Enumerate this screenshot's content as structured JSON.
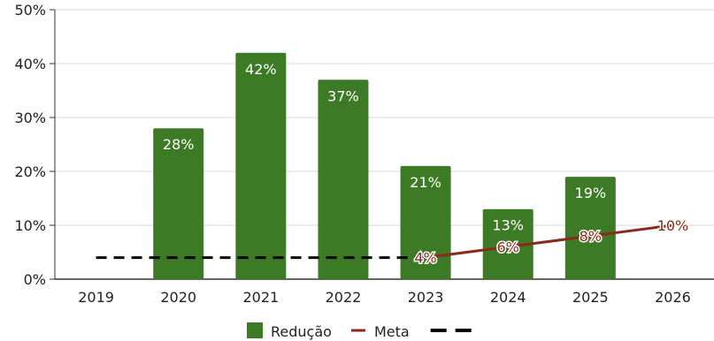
{
  "chart_data": {
    "type": "bar",
    "categories": [
      "2019",
      "2020",
      "2021",
      "2022",
      "2023",
      "2024",
      "2025",
      "2026"
    ],
    "series": [
      {
        "name": "Redução",
        "type": "bar",
        "values": [
          null,
          28,
          42,
          37,
          21,
          13,
          19,
          null
        ],
        "labels": [
          "",
          "28%",
          "42%",
          "37%",
          "21%",
          "13%",
          "19%",
          ""
        ],
        "color": "#3d7a25"
      },
      {
        "name": "Meta",
        "type": "line",
        "values": [
          null,
          null,
          null,
          null,
          4,
          6,
          8,
          10
        ],
        "labels": [
          "",
          "",
          "",
          "",
          "4%",
          "6%",
          "8%",
          "10%"
        ],
        "color": "#8b2a1a"
      },
      {
        "name": "",
        "type": "dashed-line",
        "values": [
          4,
          4,
          4,
          4,
          4,
          null,
          null,
          null
        ],
        "color": "#000000"
      }
    ],
    "ylim": [
      0,
      50
    ],
    "yticks": [
      "0%",
      "10%",
      "20%",
      "30%",
      "40%",
      "50%"
    ],
    "ytick_values": [
      0,
      10,
      20,
      30,
      40,
      50
    ],
    "grid": true,
    "legend": "bottom"
  }
}
